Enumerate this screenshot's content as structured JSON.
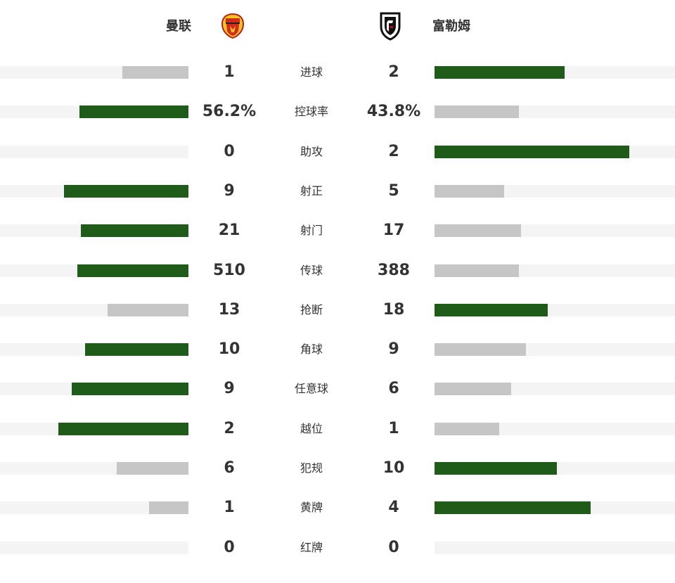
{
  "teams": {
    "home": {
      "name": "曼联",
      "crest_icon": "manchester-united-crest"
    },
    "away": {
      "name": "富勒姆",
      "crest_icon": "fulham-crest"
    }
  },
  "colors": {
    "leader": "#1f5c1a",
    "trailer": "#c6c6c6",
    "track": "#f4f4f4"
  },
  "stats": [
    {
      "label": "进球",
      "home": "1",
      "away": "2",
      "home_fill": 0.35,
      "away_fill": 0.54,
      "leader": "away"
    },
    {
      "label": "控球率",
      "home": "56.2%",
      "away": "43.8%",
      "home_fill": 0.58,
      "away_fill": 0.35,
      "leader": "home"
    },
    {
      "label": "助攻",
      "home": "0",
      "away": "2",
      "home_fill": 0.0,
      "away_fill": 0.81,
      "leader": "away"
    },
    {
      "label": "射正",
      "home": "9",
      "away": "5",
      "home_fill": 0.66,
      "away_fill": 0.29,
      "leader": "home"
    },
    {
      "label": "射门",
      "home": "21",
      "away": "17",
      "home_fill": 0.57,
      "away_fill": 0.36,
      "leader": "home"
    },
    {
      "label": "传球",
      "home": "510",
      "away": "388",
      "home_fill": 0.59,
      "away_fill": 0.35,
      "leader": "home"
    },
    {
      "label": "抢断",
      "home": "13",
      "away": "18",
      "home_fill": 0.43,
      "away_fill": 0.47,
      "leader": "away"
    },
    {
      "label": "角球",
      "home": "10",
      "away": "9",
      "home_fill": 0.55,
      "away_fill": 0.38,
      "leader": "home"
    },
    {
      "label": "任意球",
      "home": "9",
      "away": "6",
      "home_fill": 0.62,
      "away_fill": 0.32,
      "leader": "home"
    },
    {
      "label": "越位",
      "home": "2",
      "away": "1",
      "home_fill": 0.69,
      "away_fill": 0.27,
      "leader": "home"
    },
    {
      "label": "犯规",
      "home": "6",
      "away": "10",
      "home_fill": 0.38,
      "away_fill": 0.51,
      "leader": "away"
    },
    {
      "label": "黄牌",
      "home": "1",
      "away": "4",
      "home_fill": 0.21,
      "away_fill": 0.65,
      "leader": "away"
    },
    {
      "label": "红牌",
      "home": "0",
      "away": "0",
      "home_fill": 0.0,
      "away_fill": 0.0,
      "leader": "none"
    }
  ]
}
